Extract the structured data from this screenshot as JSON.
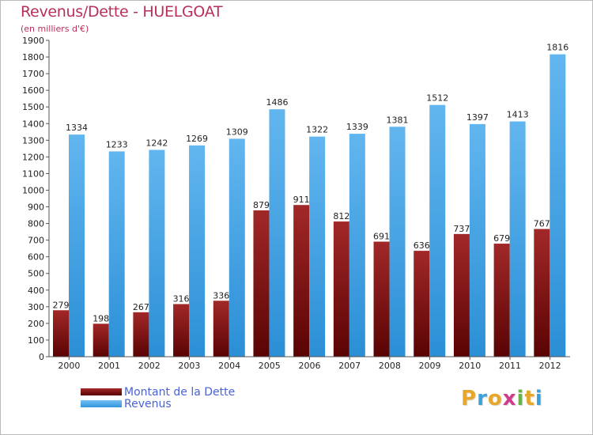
{
  "chart_data": {
    "type": "bar",
    "title": "Revenus/Dette - HUELGOAT",
    "subtitle": "(en milliers d'€)",
    "categories": [
      "2000",
      "2001",
      "2002",
      "2003",
      "2004",
      "2005",
      "2006",
      "2007",
      "2008",
      "2009",
      "2010",
      "2011",
      "2012"
    ],
    "series": [
      {
        "name": "Montant de la Dette",
        "color": "#7a1515",
        "values": [
          279,
          198,
          267,
          316,
          336,
          879,
          911,
          812,
          691,
          636,
          737,
          679,
          767
        ]
      },
      {
        "name": "Revenus",
        "color": "#4da6e8",
        "values": [
          1334,
          1233,
          1242,
          1269,
          1309,
          1486,
          1322,
          1339,
          1381,
          1512,
          1397,
          1413,
          1816
        ]
      }
    ],
    "ylim": [
      0,
      1900
    ],
    "ytick_step": 100,
    "grid": false,
    "legend_position": "bottom-left",
    "xlabel": "",
    "ylabel": ""
  },
  "brand": {
    "letters": [
      {
        "ch": "P",
        "color": "#e8a72a"
      },
      {
        "ch": "r",
        "color": "#3aa2d8"
      },
      {
        "ch": "o",
        "color": "#e8a72a"
      },
      {
        "ch": "x",
        "color": "#d03c8c"
      },
      {
        "ch": "i",
        "color": "#66b347"
      },
      {
        "ch": "t",
        "color": "#e8a72a"
      },
      {
        "ch": "i",
        "color": "#3aa2d8"
      }
    ]
  }
}
